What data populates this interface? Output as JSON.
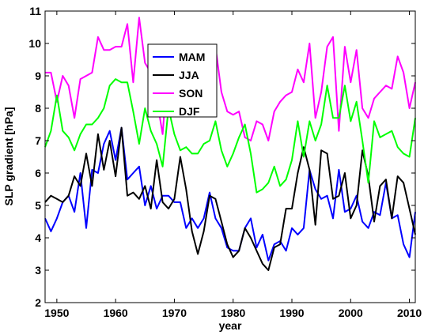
{
  "chart_data": {
    "type": "line",
    "title": "",
    "xlabel": "year",
    "ylabel": "SLP gradient [hPa]",
    "xlim": [
      1948,
      2011
    ],
    "ylim": [
      2,
      11
    ],
    "xticks": [
      1950,
      1960,
      1970,
      1980,
      1990,
      2000,
      2010
    ],
    "yticks": [
      2,
      3,
      4,
      5,
      6,
      7,
      8,
      9,
      10,
      11
    ],
    "grid": false,
    "legend_placement": "top-center",
    "x": [
      1948,
      1949,
      1950,
      1951,
      1952,
      1953,
      1954,
      1955,
      1956,
      1957,
      1958,
      1959,
      1960,
      1961,
      1962,
      1963,
      1964,
      1965,
      1966,
      1967,
      1968,
      1969,
      1970,
      1971,
      1972,
      1973,
      1974,
      1975,
      1976,
      1977,
      1978,
      1979,
      1980,
      1981,
      1982,
      1983,
      1984,
      1985,
      1986,
      1987,
      1988,
      1989,
      1990,
      1991,
      1992,
      1993,
      1994,
      1995,
      1996,
      1997,
      1998,
      1999,
      2000,
      2001,
      2002,
      2003,
      2004,
      2005,
      2006,
      2007,
      2008,
      2009,
      2010,
      2011
    ],
    "series": [
      {
        "name": "MAM",
        "color": "#0000ff",
        "values": [
          4.6,
          4.2,
          4.6,
          5.1,
          5.3,
          4.8,
          6.0,
          4.3,
          6.1,
          6.0,
          6.9,
          7.3,
          6.4,
          7.4,
          5.8,
          6.0,
          6.2,
          5.0,
          5.6,
          4.9,
          5.3,
          5.3,
          5.1,
          5.1,
          4.3,
          4.6,
          4.3,
          4.6,
          5.4,
          4.6,
          4.3,
          3.7,
          3.6,
          3.6,
          4.3,
          4.6,
          3.7,
          4.1,
          3.3,
          3.8,
          3.9,
          3.6,
          4.3,
          4.1,
          4.3,
          6.1,
          5.5,
          5.2,
          5.3,
          4.6,
          6.1,
          4.8,
          4.9,
          5.3,
          4.5,
          4.3,
          4.8,
          4.7,
          5.7,
          4.6,
          4.7,
          3.8,
          3.4,
          4.8
        ]
      },
      {
        "name": "JJA",
        "color": "#000000",
        "values": [
          5.1,
          5.3,
          5.2,
          5.1,
          5.3,
          5.9,
          5.6,
          6.6,
          5.6,
          7.2,
          6.1,
          7.0,
          5.9,
          7.4,
          5.3,
          5.4,
          5.2,
          5.6,
          4.9,
          6.4,
          5.1,
          4.9,
          5.2,
          6.5,
          5.5,
          4.2,
          3.5,
          4.2,
          5.3,
          5.2,
          4.5,
          3.8,
          3.4,
          3.6,
          4.3,
          4.0,
          3.6,
          3.2,
          3.0,
          3.7,
          3.8,
          4.9,
          4.9,
          6.0,
          6.8,
          6.1,
          4.4,
          6.7,
          6.6,
          5.2,
          5.3,
          6.0,
          4.6,
          5.0,
          6.7,
          5.9,
          4.5,
          5.6,
          5.8,
          4.6,
          5.9,
          5.7,
          4.9,
          4.1
        ]
      },
      {
        "name": "SON",
        "color": "#ff00ff",
        "values": [
          9.1,
          9.1,
          8.2,
          9.0,
          8.7,
          7.7,
          8.9,
          9.0,
          9.1,
          10.2,
          9.8,
          9.8,
          9.9,
          9.9,
          10.6,
          8.8,
          10.8,
          9.4,
          9.1,
          8.3,
          7.2,
          9.6,
          8.5,
          9.2,
          9.0,
          8.9,
          8.5,
          9.1,
          9.3,
          9.9,
          8.5,
          7.9,
          7.8,
          7.9,
          7.1,
          7.0,
          7.6,
          7.5,
          7.0,
          7.9,
          8.2,
          8.4,
          8.5,
          9.2,
          8.8,
          10.0,
          7.7,
          8.5,
          9.9,
          10.2,
          7.3,
          9.9,
          8.8,
          9.8,
          8.0,
          7.7,
          8.3,
          8.5,
          8.7,
          8.6,
          9.6,
          9.1,
          8.0,
          8.8
        ]
      },
      {
        "name": "DJF",
        "color": "#00ff00",
        "values": [
          6.8,
          7.3,
          8.4,
          7.3,
          7.1,
          6.7,
          7.2,
          7.5,
          7.5,
          7.7,
          8.0,
          8.7,
          8.9,
          8.8,
          8.8,
          7.9,
          6.9,
          8.0,
          7.3,
          6.9,
          6.2,
          8.0,
          7.2,
          6.7,
          6.8,
          6.6,
          6.6,
          6.9,
          7.0,
          7.6,
          6.7,
          6.2,
          6.6,
          7.1,
          7.5,
          6.6,
          5.4,
          5.5,
          5.7,
          6.2,
          5.6,
          5.8,
          6.4,
          7.6,
          6.5,
          7.6,
          7.0,
          7.5,
          8.7,
          7.7,
          7.7,
          8.7,
          7.6,
          8.2,
          7.0,
          5.7,
          7.6,
          7.1,
          7.2,
          7.3,
          6.8,
          6.6,
          6.5,
          7.7
        ]
      }
    ]
  }
}
